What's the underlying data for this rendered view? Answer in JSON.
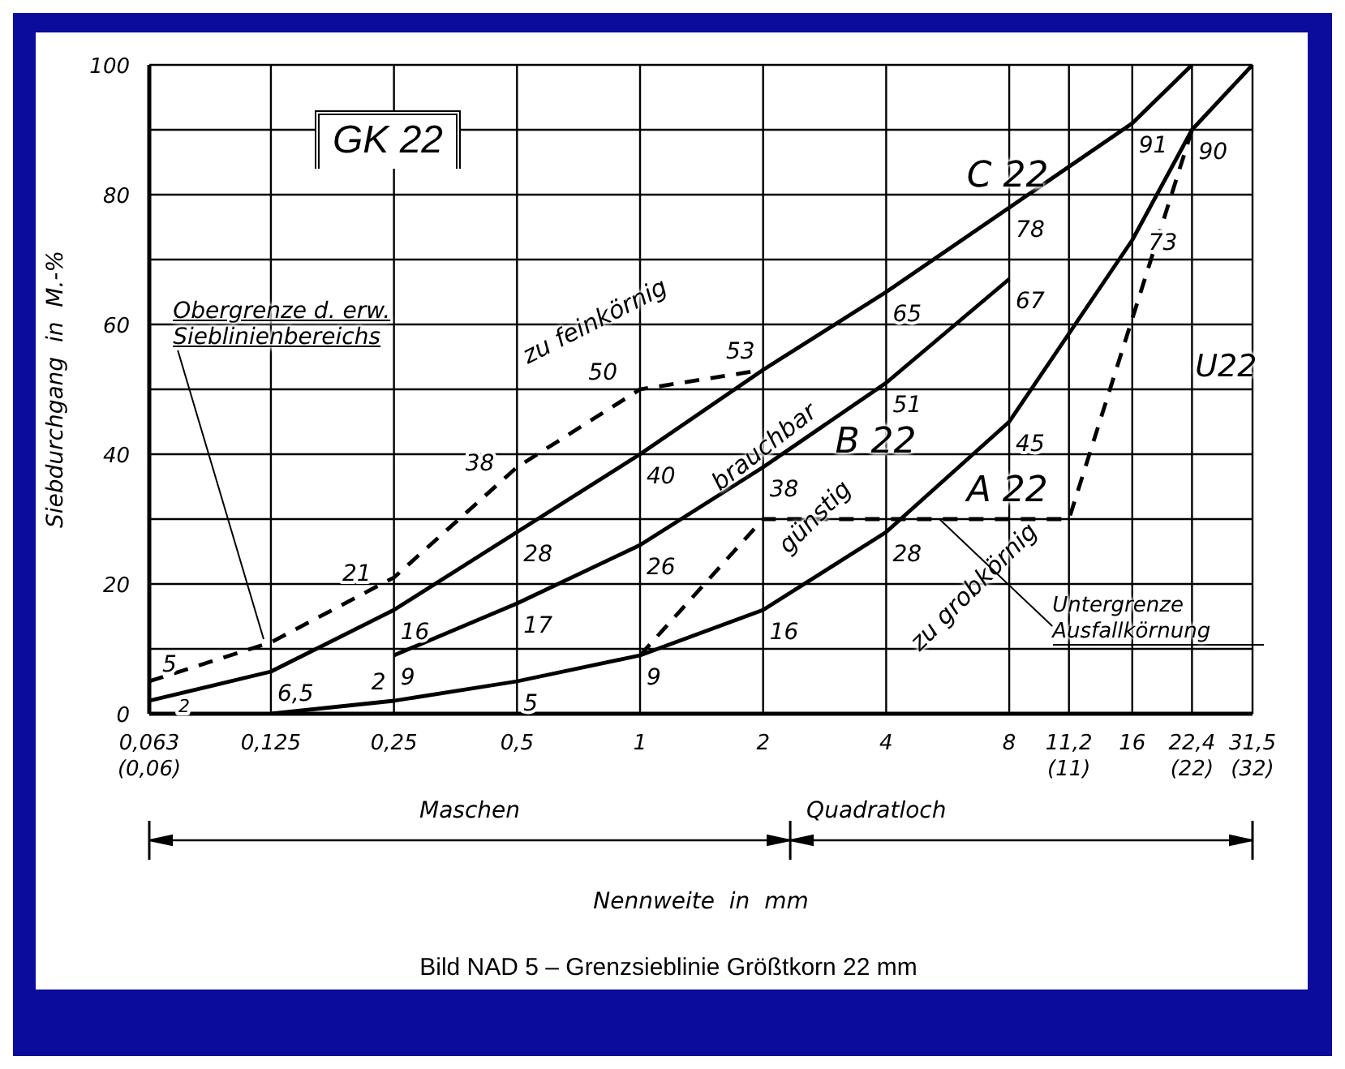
{
  "chart_data": {
    "type": "line",
    "title": "Bild NAD 5 – Grenzsieblinie Größtkorn 22 mm",
    "xlabel": "Nennweite  in  mm",
    "ylabel": "Siebdurchgang  in  M.-%",
    "annotations": [
      "GK 22",
      "zu feinkörnig",
      "brauchbar",
      "günstig",
      "zu grobkörnig",
      "Untergrenze Ausfallkörnung",
      "Maschen",
      "Quadratloch"
    ],
    "series": [
      {
        "name": "C 22",
        "color": "#000000",
        "line_style": "solid",
        "x": [
          0.063,
          0.125,
          0.25,
          0.5,
          1,
          2,
          4,
          8,
          16,
          22.4
        ],
        "values": [
          2,
          6.5,
          16,
          28,
          40,
          53,
          65,
          78,
          91,
          100
        ],
        "value_labels": [
          "2",
          "6,5",
          "16",
          "28",
          "40",
          "53",
          "65",
          "78",
          "91",
          null
        ]
      },
      {
        "name": "B 22",
        "color": "#000000",
        "line_style": "solid",
        "x": [
          0.25,
          0.5,
          1,
          2,
          4,
          8
        ],
        "values": [
          9,
          17,
          26,
          38,
          51,
          67
        ],
        "value_labels": [
          "9",
          "17",
          "26",
          "38",
          "51",
          "67"
        ]
      },
      {
        "name": "A 22",
        "color": "#000000",
        "line_style": "solid",
        "x": [
          0.125,
          0.25,
          0.5,
          1,
          2,
          4,
          8,
          16,
          22.4,
          31.5
        ],
        "values": [
          0,
          2,
          5,
          9,
          16,
          28,
          45,
          73,
          90,
          100
        ],
        "value_labels": [
          null,
          "2",
          "5",
          "9",
          "16",
          "28",
          "45",
          "73",
          "90",
          null
        ]
      },
      {
        "name": "Obergrenze d. erw. Sieblinienbereichs",
        "color": "#000000",
        "line_style": "dashed",
        "x": [
          0.063,
          0.125,
          0.25,
          0.5,
          1,
          2
        ],
        "values": [
          5,
          11,
          21,
          38,
          50,
          53
        ],
        "value_labels": [
          "5",
          null,
          "21",
          "38",
          "50",
          null
        ]
      },
      {
        "name": "U22",
        "color": "#000000",
        "line_style": "dashed",
        "x": [
          1,
          2,
          11.2,
          22.4
        ],
        "values": [
          9,
          30,
          30,
          90
        ]
      }
    ],
    "log": "x",
    "xlim": [
      0.063,
      31.5
    ],
    "xticks": [
      {
        "value": 0.063,
        "label": "0,063\n(0,06)"
      },
      {
        "value": 0.125,
        "label": "0,125"
      },
      {
        "value": 0.25,
        "label": "0,25"
      },
      {
        "value": 0.5,
        "label": "0,5"
      },
      1,
      2,
      4,
      8,
      {
        "value": 11.2,
        "label": "11,2\n(11)"
      },
      16,
      {
        "value": 22.4,
        "label": "22,4\n(22)"
      },
      {
        "value": 31.5,
        "label": "31,5\n(32)"
      }
    ],
    "ylim": [
      0,
      100
    ],
    "yticks": [
      0,
      {
        "value": 10,
        "label": null
      },
      20,
      {
        "value": 30,
        "label": null
      },
      40,
      {
        "value": 50,
        "label": null
      },
      60,
      {
        "value": 70,
        "label": null
      },
      80,
      {
        "value": 90,
        "label": null
      },
      100
    ],
    "grid": true,
    "legend": false,
    "marker": "none"
  }
}
